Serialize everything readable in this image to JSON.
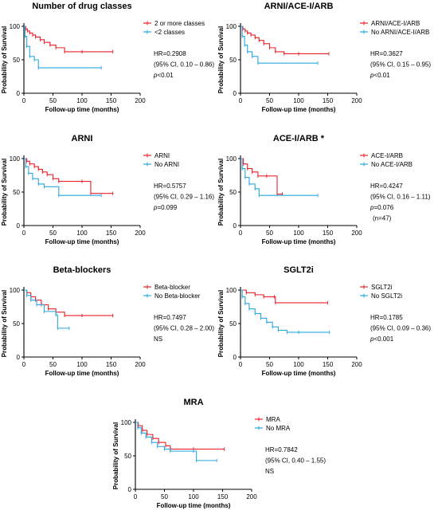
{
  "colors": {
    "red": "#e8202a",
    "blue": "#29a8df",
    "axis": "#000000"
  },
  "chart_data": [
    {
      "type": "line",
      "title": "Number of drug classes",
      "xlabel": "Follow-up time (months)",
      "ylabel": "Probability of Survival",
      "xlim": [
        0,
        200
      ],
      "ylim": [
        0,
        100
      ],
      "xticks": [
        "0",
        "50",
        "100",
        "150",
        "200"
      ],
      "yticks": [
        "0",
        "50",
        "100"
      ],
      "series": [
        {
          "name": "2 or more classes",
          "color": "red",
          "x": [
            0,
            3,
            6,
            10,
            15,
            20,
            28,
            35,
            45,
            55,
            70,
            100,
            153
          ],
          "y": [
            100,
            96,
            93,
            90,
            87,
            84,
            80,
            76,
            72,
            68,
            62,
            62,
            62
          ]
        },
        {
          "name": "<2 classes",
          "color": "blue",
          "x": [
            0,
            2,
            5,
            10,
            18,
            25,
            133
          ],
          "y": [
            100,
            85,
            70,
            55,
            50,
            38,
            38
          ]
        }
      ],
      "stats": [
        "HR=0.2908",
        "(95% CI, 0.10 – 0.86)",
        "p<0.01"
      ]
    },
    {
      "type": "line",
      "title": "ARNI/ACE-I/ARB",
      "xlabel": "Follow-up time (months)",
      "ylabel": "Probability of Survival",
      "xlim": [
        0,
        200
      ],
      "ylim": [
        0,
        100
      ],
      "xticks": [
        "0",
        "50",
        "100",
        "150",
        "200"
      ],
      "yticks": [
        "0",
        "50",
        "100"
      ],
      "series": [
        {
          "name": "ARNI/ACE-I/ARB",
          "color": "red",
          "x": [
            0,
            4,
            8,
            12,
            18,
            25,
            32,
            40,
            50,
            60,
            75,
            100,
            152
          ],
          "y": [
            100,
            96,
            93,
            90,
            87,
            83,
            79,
            74,
            68,
            62,
            59,
            59,
            59
          ]
        },
        {
          "name": "No ARNI/ACE-I/ARB",
          "color": "blue",
          "x": [
            0,
            3,
            7,
            12,
            20,
            30,
            133
          ],
          "y": [
            100,
            85,
            72,
            62,
            55,
            45,
            45
          ]
        }
      ],
      "stats": [
        "HR=0.3627",
        "(95% CI, 0.15 – 0.95)",
        "p<0.01"
      ]
    },
    {
      "type": "line",
      "title": "ARNI",
      "xlabel": "Follow-up time (months)",
      "ylabel": "Probability of Survival",
      "xlim": [
        0,
        200
      ],
      "ylim": [
        0,
        100
      ],
      "xticks": [
        "0",
        "50",
        "100",
        "150",
        "200"
      ],
      "yticks": [
        "0",
        "50",
        "100"
      ],
      "series": [
        {
          "name": "ARNI",
          "color": "red",
          "x": [
            0,
            5,
            10,
            18,
            25,
            32,
            40,
            50,
            60,
            100,
            115,
            153
          ],
          "y": [
            100,
            96,
            92,
            88,
            84,
            80,
            76,
            70,
            66,
            66,
            48,
            48
          ]
        },
        {
          "name": "No ARNI",
          "color": "blue",
          "x": [
            0,
            3,
            8,
            15,
            25,
            35,
            60,
            133
          ],
          "y": [
            100,
            88,
            78,
            70,
            62,
            58,
            45,
            45
          ]
        }
      ],
      "stats": [
        "HR=0.5757",
        "(95% CI, 0.29 – 1.16)",
        "p=0.099"
      ]
    },
    {
      "type": "line",
      "title": "ACE-I/ARB *",
      "xlabel": "Follow-up time (months)",
      "ylabel": "Probability of Survival",
      "xlim": [
        0,
        200
      ],
      "ylim": [
        0,
        100
      ],
      "xticks": [
        "0",
        "50",
        "100",
        "150",
        "200"
      ],
      "yticks": [
        "0",
        "50",
        "100"
      ],
      "series": [
        {
          "name": "ACE-I/ARB",
          "color": "red",
          "x": [
            0,
            5,
            12,
            20,
            30,
            45,
            63,
            72
          ],
          "y": [
            100,
            92,
            85,
            80,
            74,
            74,
            47,
            47
          ]
        },
        {
          "name": "No ACE-I/ARB",
          "color": "blue",
          "x": [
            0,
            3,
            8,
            15,
            25,
            32,
            133
          ],
          "y": [
            100,
            85,
            72,
            62,
            55,
            45,
            45
          ]
        }
      ],
      "stats": [
        "HR=0.4247",
        "(95% CI, 0.16 – 1.11)",
        "p=0.076",
        "(n=47)"
      ]
    },
    {
      "type": "line",
      "title": "Beta-blockers",
      "xlabel": "Follow-up time (months)",
      "ylabel": "Probability of Survival",
      "xlim": [
        0,
        200
      ],
      "ylim": [
        0,
        100
      ],
      "xticks": [
        "0",
        "50",
        "100",
        "150",
        "200"
      ],
      "yticks": [
        "0",
        "50",
        "100"
      ],
      "series": [
        {
          "name": "Beta-blocker",
          "color": "red",
          "x": [
            0,
            5,
            12,
            20,
            30,
            42,
            55,
            70,
            100,
            153
          ],
          "y": [
            100,
            96,
            90,
            85,
            78,
            72,
            67,
            62,
            62,
            62
          ]
        },
        {
          "name": "No Beta-blocker",
          "color": "blue",
          "x": [
            0,
            5,
            12,
            22,
            35,
            55,
            58,
            78
          ],
          "y": [
            100,
            92,
            85,
            78,
            68,
            63,
            43,
            43
          ]
        }
      ],
      "stats": [
        "HR=0.7497",
        "(95% CI, 0.28 – 2.00)",
        "NS"
      ]
    },
    {
      "type": "line",
      "title": "SGLT2i",
      "xlabel": "Follow-up time (months)",
      "ylabel": "Probability of Survival",
      "xlim": [
        0,
        200
      ],
      "ylim": [
        0,
        100
      ],
      "xticks": [
        "0",
        "50",
        "100",
        "150",
        "200"
      ],
      "yticks": [
        "0",
        "50",
        "100"
      ],
      "series": [
        {
          "name": "SGLT2i",
          "color": "red",
          "x": [
            0,
            10,
            25,
            40,
            58,
            60,
            150
          ],
          "y": [
            100,
            96,
            93,
            90,
            90,
            81,
            81
          ]
        },
        {
          "name": "No SGLT2i",
          "color": "blue",
          "x": [
            0,
            3,
            8,
            15,
            25,
            35,
            45,
            55,
            65,
            80,
            100,
            153
          ],
          "y": [
            100,
            90,
            80,
            72,
            65,
            58,
            52,
            45,
            40,
            37,
            37,
            37
          ]
        }
      ],
      "stats": [
        "HR=0.1785",
        "(95% CI, 0.09 – 0.36)",
        "p<0.001"
      ]
    },
    {
      "type": "line",
      "title": "MRA",
      "xlabel": "Follow-up time (months)",
      "ylabel": "Probability of Survival",
      "xlim": [
        0,
        200
      ],
      "ylim": [
        0,
        100
      ],
      "xticks": [
        "0",
        "50",
        "100",
        "150",
        "200"
      ],
      "yticks": [
        "0",
        "50",
        "100"
      ],
      "series": [
        {
          "name": "MRA",
          "color": "red",
          "x": [
            0,
            5,
            12,
            20,
            30,
            40,
            52,
            60,
            100,
            153
          ],
          "y": [
            100,
            95,
            88,
            82,
            76,
            70,
            65,
            60,
            60,
            60
          ]
        },
        {
          "name": "No MRA",
          "color": "blue",
          "x": [
            0,
            4,
            10,
            18,
            28,
            38,
            50,
            60,
            100,
            105,
            140
          ],
          "y": [
            100,
            92,
            84,
            78,
            70,
            64,
            60,
            57,
            57,
            43,
            43
          ]
        }
      ],
      "stats": [
        "HR=0.7842",
        "(95% CI, 0.40 – 1.55)",
        "NS"
      ]
    }
  ]
}
